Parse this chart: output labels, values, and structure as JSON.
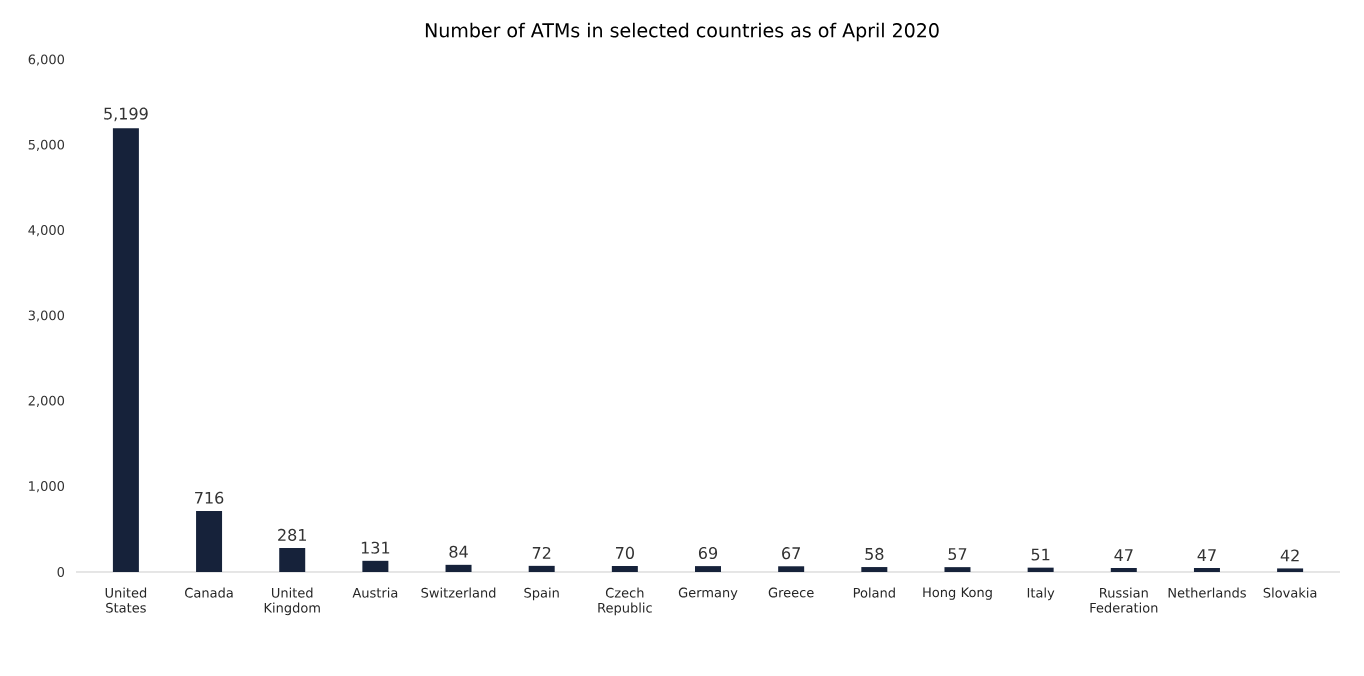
{
  "chart_data": {
    "type": "bar",
    "title": "Number of ATMs in selected countries as of April 2020",
    "categories": [
      "United States",
      "Canada",
      "United Kingdom",
      "Austria",
      "Switzerland",
      "Spain",
      "Czech Republic",
      "Germany",
      "Greece",
      "Poland",
      "Hong Kong",
      "Italy",
      "Russian Federation",
      "Netherlands",
      "Slovakia"
    ],
    "values": [
      5199,
      716,
      281,
      131,
      84,
      72,
      70,
      69,
      67,
      58,
      57,
      51,
      47,
      47,
      42
    ],
    "value_labels": [
      "5,199",
      "716",
      "281",
      "131",
      "84",
      "72",
      "70",
      "69",
      "67",
      "58",
      "57",
      "51",
      "47",
      "47",
      "42"
    ],
    "color": "#16223a",
    "ylim": [
      0,
      6000
    ],
    "yticks": [
      0,
      {
        "value": 1000,
        "label": "1,000"
      },
      {
        "value": 2000,
        "label": "2,000"
      },
      {
        "value": 3000,
        "label": "3,000"
      },
      {
        "value": 4000,
        "label": "4,000"
      },
      {
        "value": 5000,
        "label": "5,000"
      },
      {
        "value": 6000,
        "label": "6,000"
      }
    ],
    "grid": false
  }
}
